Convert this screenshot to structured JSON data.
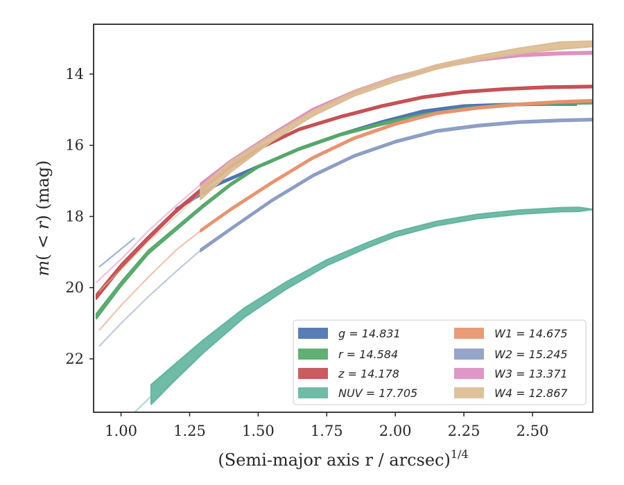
{
  "chart_data": {
    "type": "line",
    "xlabel": "(Semi-major axis r / arcsec)",
    "xlabel_exponent": "1/4",
    "ylabel": "m(< r) (mag)",
    "ylabel_parts": {
      "m": "m",
      "open": "(",
      "lt": " < ",
      "r": "r",
      "close": ")",
      "unit": " (mag)"
    },
    "xlim": [
      0.9,
      2.72
    ],
    "ylim": [
      23.5,
      12.6
    ],
    "y_inverted": true,
    "x_ticks": [
      1.0,
      1.25,
      1.5,
      1.75,
      2.0,
      2.25,
      2.5
    ],
    "x_tick_labels": [
      "1.00",
      "1.25",
      "1.50",
      "1.75",
      "2.00",
      "2.25",
      "2.50"
    ],
    "y_ticks": [
      14,
      16,
      18,
      20,
      22
    ],
    "y_tick_labels": [
      "14",
      "16",
      "18",
      "20",
      "22"
    ],
    "grid": false,
    "legend_position": "lower-right",
    "series": [
      {
        "name": "g = 14.831",
        "band": "g",
        "total": "14.831",
        "color": "#4c72b0",
        "x": [
          0.92,
          1.05,
          1.2,
          1.35,
          1.5,
          1.65,
          1.8,
          1.95,
          2.1,
          2.25,
          2.4,
          2.55,
          2.66
        ],
        "y": [
          19.42,
          18.6,
          17.8,
          17.1,
          16.6,
          16.1,
          15.7,
          15.35,
          15.05,
          14.9,
          14.86,
          14.84,
          14.84
        ],
        "width": [
          0.04,
          0.04,
          0.05,
          0.06,
          0.06,
          0.06,
          0.06,
          0.06,
          0.06,
          0.06,
          0.06,
          0.06,
          0.06
        ],
        "faint_until": 1.1
      },
      {
        "name": "r = 14.584",
        "band": "r",
        "total": "14.584",
        "color": "#55a868",
        "x": [
          0.91,
          1.0,
          1.1,
          1.2,
          1.3,
          1.4,
          1.5,
          1.65,
          1.8,
          1.95,
          2.1,
          2.25,
          2.4,
          2.55,
          2.72
        ],
        "y": [
          20.8,
          19.9,
          19.0,
          18.35,
          17.7,
          17.1,
          16.6,
          16.1,
          15.7,
          15.4,
          15.15,
          14.98,
          14.87,
          14.82,
          14.8
        ],
        "width": [
          0.14,
          0.12,
          0.1,
          0.09,
          0.08,
          0.07,
          0.06,
          0.06,
          0.06,
          0.06,
          0.06,
          0.06,
          0.06,
          0.06,
          0.06
        ],
        "faint_until": 0.9
      },
      {
        "name": "z = 14.178",
        "band": "z",
        "total": "14.178",
        "color": "#c44e52",
        "x": [
          0.91,
          1.0,
          1.1,
          1.2,
          1.3,
          1.4,
          1.5,
          1.65,
          1.8,
          1.95,
          2.1,
          2.25,
          2.4,
          2.55,
          2.72
        ],
        "y": [
          20.25,
          19.4,
          18.6,
          17.85,
          17.2,
          16.6,
          16.1,
          15.55,
          15.2,
          14.9,
          14.65,
          14.5,
          14.42,
          14.37,
          14.35
        ],
        "width": [
          0.14,
          0.12,
          0.1,
          0.09,
          0.08,
          0.07,
          0.06,
          0.06,
          0.06,
          0.06,
          0.06,
          0.06,
          0.06,
          0.06,
          0.06
        ],
        "faint_until": 0.9
      },
      {
        "name": "NUV = 17.705",
        "band": "NUV",
        "total": "17.705",
        "color": "#64b5a0",
        "x": [
          1.11,
          1.2,
          1.3,
          1.45,
          1.6,
          1.75,
          1.9,
          2.0,
          2.15,
          2.3,
          2.45,
          2.6,
          2.67,
          2.72
        ],
        "y": [
          23.0,
          22.35,
          21.65,
          20.7,
          19.95,
          19.3,
          18.8,
          18.5,
          18.2,
          18.0,
          17.88,
          17.81,
          17.8,
          17.8
        ],
        "width": [
          0.55,
          0.45,
          0.36,
          0.26,
          0.2,
          0.16,
          0.14,
          0.13,
          0.12,
          0.12,
          0.11,
          0.11,
          0.11,
          0.0
        ],
        "faint_before": {
          "x": [
            0.95,
            1.0,
            1.05,
            1.11
          ],
          "y": [
            24.3,
            23.9,
            23.5,
            23.05
          ]
        }
      },
      {
        "name": "W1 = 14.675",
        "band": "W1",
        "total": "14.675",
        "color": "#e8926f",
        "x": [
          0.92,
          1.0,
          1.1,
          1.2,
          1.29,
          1.4,
          1.55,
          1.7,
          1.85,
          2.0,
          2.15,
          2.3,
          2.45,
          2.6,
          2.72
        ],
        "y": [
          21.2,
          20.5,
          19.7,
          18.95,
          18.4,
          17.8,
          17.05,
          16.35,
          15.8,
          15.4,
          15.1,
          14.95,
          14.85,
          14.78,
          14.75
        ],
        "width": [
          0.04,
          0.04,
          0.04,
          0.04,
          0.06,
          0.06,
          0.06,
          0.06,
          0.06,
          0.06,
          0.06,
          0.06,
          0.06,
          0.06,
          0.06
        ],
        "faint_until": 1.29
      },
      {
        "name": "W2 = 15.245",
        "band": "W2",
        "total": "15.245",
        "color": "#8c9cc4",
        "x": [
          0.92,
          1.0,
          1.1,
          1.2,
          1.29,
          1.4,
          1.55,
          1.7,
          1.85,
          2.0,
          2.15,
          2.3,
          2.45,
          2.6,
          2.72
        ],
        "y": [
          21.65,
          21.0,
          20.25,
          19.55,
          18.95,
          18.35,
          17.55,
          16.85,
          16.3,
          15.9,
          15.6,
          15.45,
          15.35,
          15.3,
          15.28
        ],
        "width": [
          0.04,
          0.04,
          0.04,
          0.04,
          0.07,
          0.06,
          0.06,
          0.06,
          0.06,
          0.06,
          0.06,
          0.06,
          0.06,
          0.06,
          0.06
        ],
        "faint_until": 1.29
      },
      {
        "name": "W3 = 13.371",
        "band": "W3",
        "total": "13.371",
        "color": "#dc8fc0",
        "x": [
          0.91,
          1.0,
          1.1,
          1.2,
          1.29,
          1.4,
          1.55,
          1.7,
          1.85,
          2.0,
          2.15,
          2.3,
          2.45,
          2.6,
          2.72
        ],
        "y": [
          19.85,
          19.2,
          18.4,
          17.7,
          17.1,
          16.45,
          15.7,
          15.0,
          14.5,
          14.1,
          13.8,
          13.6,
          13.47,
          13.42,
          13.4
        ],
        "width": [
          0.05,
          0.05,
          0.05,
          0.05,
          0.07,
          0.07,
          0.07,
          0.07,
          0.07,
          0.07,
          0.07,
          0.07,
          0.07,
          0.07,
          0.07
        ],
        "faint_until": 1.29
      },
      {
        "name": "W4 = 12.867",
        "band": "W4",
        "total": "12.867",
        "color": "#dcbc94",
        "x": [
          0.92,
          1.0,
          1.1,
          1.2,
          1.29,
          1.4,
          1.55,
          1.7,
          1.85,
          2.0,
          2.15,
          2.3,
          2.45,
          2.6,
          2.72
        ],
        "y": [
          20.1,
          19.5,
          18.7,
          18.0,
          17.35,
          16.6,
          15.8,
          15.1,
          14.55,
          14.15,
          13.8,
          13.55,
          13.35,
          13.2,
          13.15
        ],
        "width": [
          0.04,
          0.04,
          0.04,
          0.04,
          0.35,
          0.3,
          0.18,
          0.15,
          0.13,
          0.12,
          0.12,
          0.12,
          0.15,
          0.2,
          0.15
        ],
        "faint_until": 1.29
      }
    ],
    "legend_columns": [
      [
        "g",
        "r",
        "z",
        "NUV"
      ],
      [
        "W1",
        "W2",
        "W3",
        "W4"
      ]
    ]
  }
}
